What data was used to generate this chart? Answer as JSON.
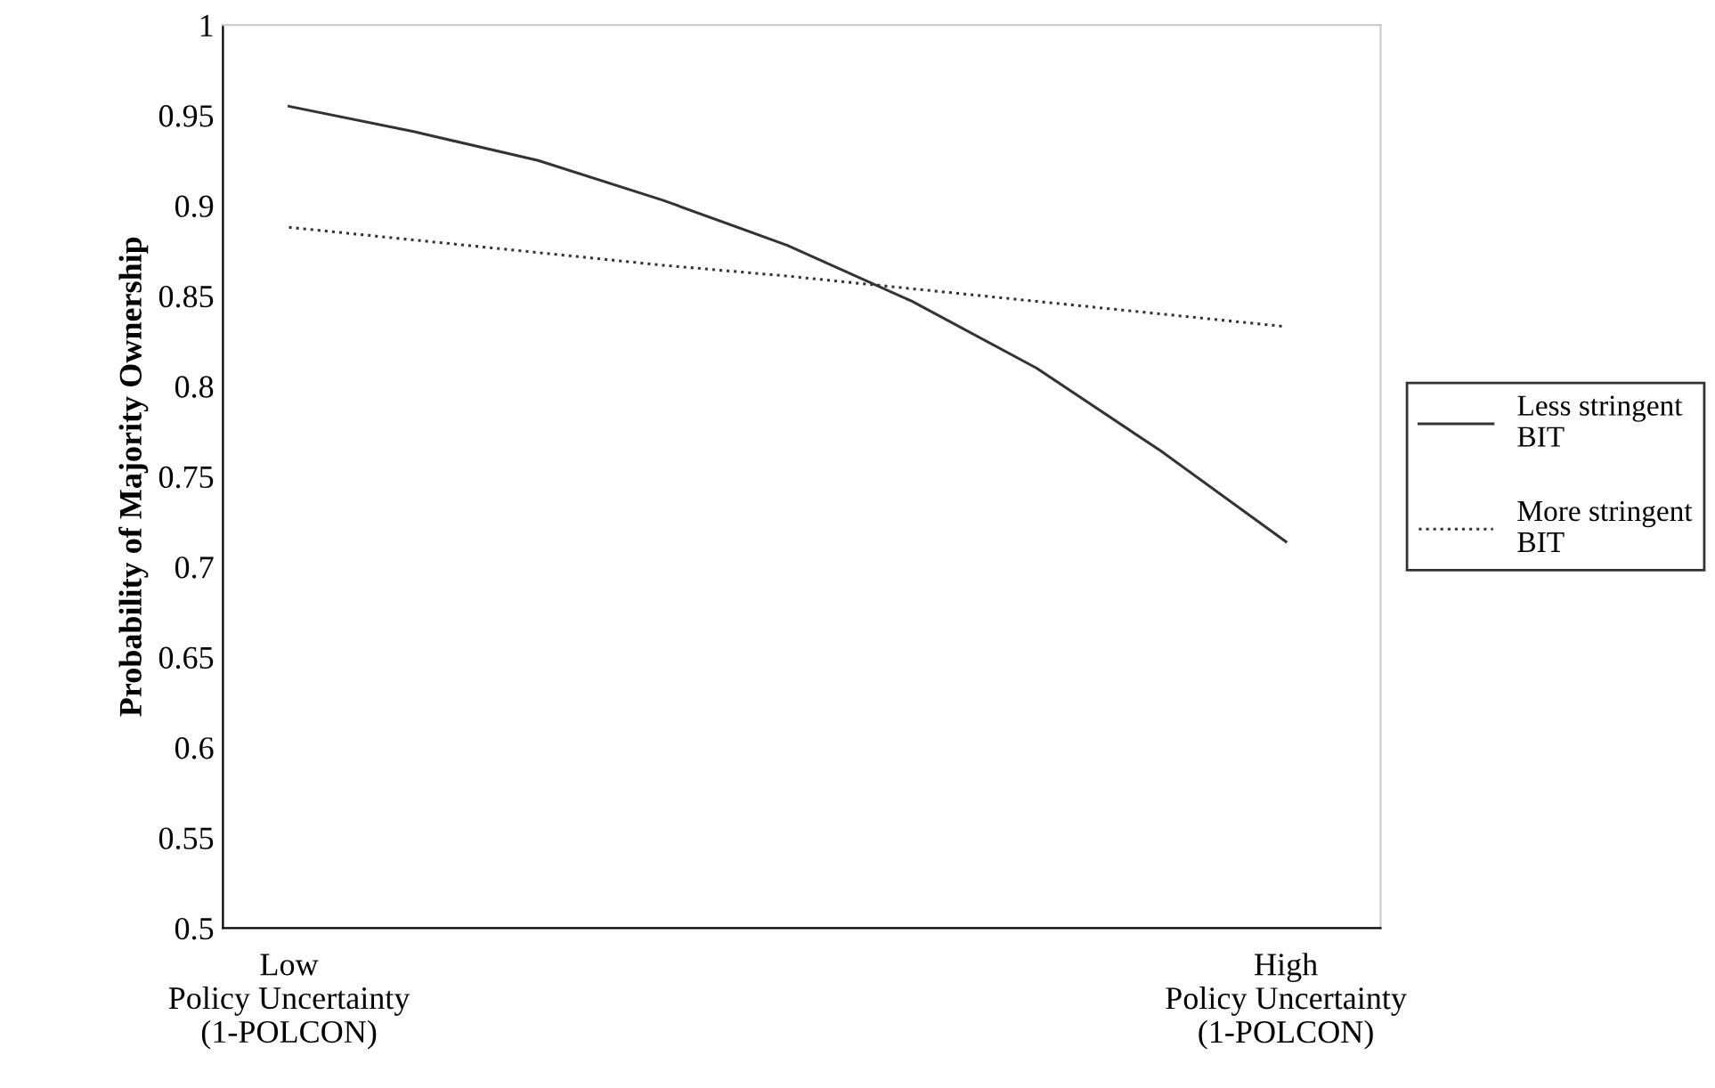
{
  "chart_data": {
    "type": "line",
    "ylabel": "Probability of Majority Ownership",
    "categories": [
      "Low\nPolicy Uncertainty\n(1-POLCON)",
      null,
      null,
      null,
      null,
      null,
      null,
      null,
      "High\nPolicy Uncertainty\n(1-POLCON)"
    ],
    "series": [
      {
        "name": "Less stringent\nBIT",
        "color": "#333333",
        "line_style": "solid",
        "values": [
          0.955,
          0.941,
          0.925,
          0.903,
          0.878,
          0.847,
          0.81,
          0.764,
          0.714
        ]
      },
      {
        "name": "More stringent\nBIT",
        "color": "#333333",
        "line_style": "dotted",
        "values": [
          0.888,
          0.881,
          0.874,
          0.867,
          0.861,
          0.854,
          0.847,
          0.84,
          0.833
        ]
      }
    ],
    "ylim": [
      0.5,
      1
    ],
    "yticks": [
      0.5,
      0.55,
      0.6,
      0.65,
      0.7,
      0.75,
      0.8,
      0.85,
      0.9,
      0.95,
      1
    ],
    "grid": false,
    "legend": "right"
  }
}
